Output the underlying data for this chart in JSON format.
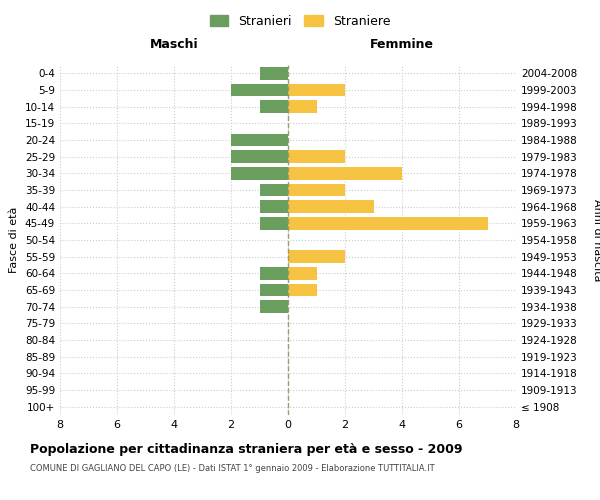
{
  "age_groups": [
    "100+",
    "95-99",
    "90-94",
    "85-89",
    "80-84",
    "75-79",
    "70-74",
    "65-69",
    "60-64",
    "55-59",
    "50-54",
    "45-49",
    "40-44",
    "35-39",
    "30-34",
    "25-29",
    "20-24",
    "15-19",
    "10-14",
    "5-9",
    "0-4"
  ],
  "birth_years": [
    "≤ 1908",
    "1909-1913",
    "1914-1918",
    "1919-1923",
    "1924-1928",
    "1929-1933",
    "1934-1938",
    "1939-1943",
    "1944-1948",
    "1949-1953",
    "1954-1958",
    "1959-1963",
    "1964-1968",
    "1969-1973",
    "1974-1978",
    "1979-1983",
    "1984-1988",
    "1989-1993",
    "1994-1998",
    "1999-2003",
    "2004-2008"
  ],
  "males": [
    0,
    0,
    0,
    0,
    0,
    0,
    1,
    1,
    1,
    0,
    0,
    1,
    1,
    1,
    2,
    2,
    2,
    0,
    1,
    2,
    1
  ],
  "females": [
    0,
    0,
    0,
    0,
    0,
    0,
    0,
    1,
    1,
    2,
    0,
    7,
    3,
    2,
    4,
    2,
    0,
    0,
    1,
    2,
    0
  ],
  "male_color": "#6a9e5e",
  "female_color": "#f5c242",
  "grid_color": "#cccccc",
  "center_line_color": "#9b9b6e",
  "title": "Popolazione per cittadinanza straniera per età e sesso - 2009",
  "subtitle": "COMUNE DI GAGLIANO DEL CAPO (LE) - Dati ISTAT 1° gennaio 2009 - Elaborazione TUTTITALIA.IT",
  "xlabel_left": "Maschi",
  "xlabel_right": "Femmine",
  "ylabel_left": "Fasce di età",
  "ylabel_right": "Anni di nascita",
  "legend_male": "Stranieri",
  "legend_female": "Straniere",
  "xlim": 8,
  "background_color": "#ffffff"
}
